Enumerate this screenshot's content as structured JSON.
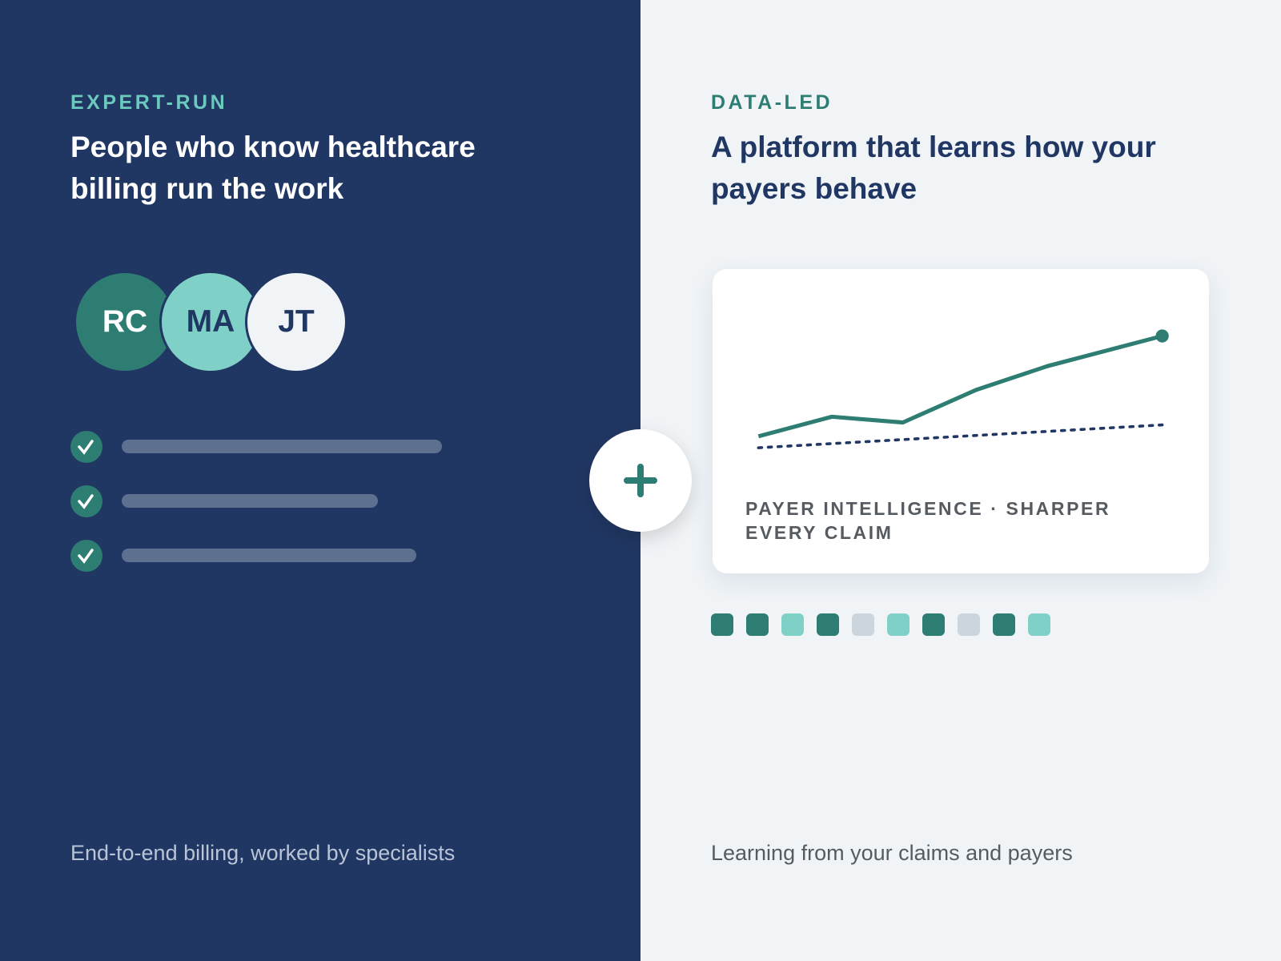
{
  "left": {
    "eyebrow": "EXPERT-RUN",
    "title": "People who know healthcare billing run the work",
    "avatars": [
      "RC",
      "MA",
      "JT"
    ],
    "footer": "End-to-end billing, worked by specialists"
  },
  "right": {
    "eyebrow": "DATA-LED",
    "title": "A platform that learns how your payers behave",
    "card_caption": "PAYER INTELLIGENCE · SHARPER EVERY CLAIM",
    "footer": "Learning from your claims and payers"
  }
}
